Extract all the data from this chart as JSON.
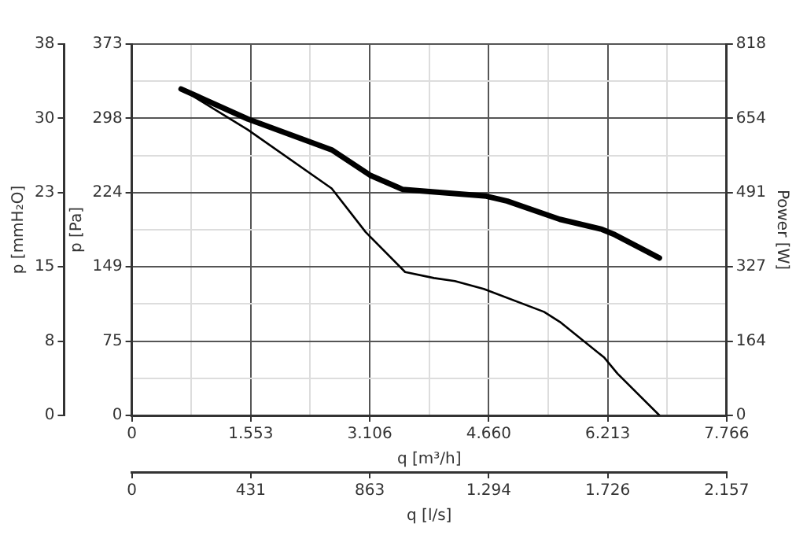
{
  "chart_data": {
    "type": "line",
    "xlabel": "q [m³/h]",
    "ylabel": "p [Pa]",
    "y2label": "Power [W]",
    "y3label": "p [mmH₂O]",
    "x2label": "q [l/s]",
    "xlim": [
      0,
      7766
    ],
    "xticks": [
      0,
      {
        "value": 776.6,
        "label": null
      },
      {
        "value": 1553.2,
        "label": "1.553"
      },
      {
        "value": 2329.8,
        "label": null
      },
      {
        "value": 3106.4,
        "label": "3.106"
      },
      {
        "value": 3883,
        "label": null
      },
      {
        "value": 4659.6,
        "label": "4.660"
      },
      {
        "value": 5436.2,
        "label": null
      },
      {
        "value": 6212.8,
        "label": "6.213"
      },
      {
        "value": 6989.4,
        "label": null
      },
      {
        "value": 7766,
        "label": "7.766"
      }
    ],
    "x2lim": [
      0,
      2157
    ],
    "x2ticks": [
      0,
      {
        "value": 431.4,
        "label": "431"
      },
      {
        "value": 862.8,
        "label": "863"
      },
      {
        "value": 1294.2,
        "label": "1.294"
      },
      {
        "value": 1725.6,
        "label": "1.726"
      },
      {
        "value": 2157,
        "label": "2.157"
      }
    ],
    "ylim": [
      0,
      373
    ],
    "yticks": [
      0,
      {
        "value": 37.3,
        "label": null
      },
      {
        "value": 74.6,
        "label": "75"
      },
      {
        "value": 111.9,
        "label": null
      },
      {
        "value": 149.2,
        "label": "149"
      },
      {
        "value": 186.5,
        "label": null
      },
      {
        "value": 223.8,
        "label": "224"
      },
      {
        "value": 261.1,
        "label": null
      },
      {
        "value": 298.4,
        "label": "298"
      },
      {
        "value": 335.7,
        "label": null
      },
      373
    ],
    "y2lim": [
      0,
      818
    ],
    "y2ticks": [
      0,
      {
        "value": 163.6,
        "label": "164"
      },
      {
        "value": 327.2,
        "label": "327"
      },
      {
        "value": 490.8,
        "label": "491"
      },
      {
        "value": 654.4,
        "label": "654"
      },
      818
    ],
    "y3lim": [
      0,
      38
    ],
    "y3ticks": [
      0,
      {
        "value": 7.6,
        "label": "8"
      },
      {
        "value": 15.2,
        "label": "15"
      },
      {
        "value": 22.8,
        "label": "23"
      },
      {
        "value": 30.4,
        "label": "30"
      },
      38
    ],
    "grid": true,
    "marker": "none",
    "line_style": "solid",
    "series": [
      {
        "color": "#000000",
        "x": [
          643,
          1514,
          2609,
          3054,
          3568,
          3944,
          4218,
          4595,
          5382,
          5588,
          6169,
          6341,
          6889
        ],
        "values": [
          328,
          287,
          228,
          184,
          144,
          138,
          135,
          127,
          104,
          94,
          58,
          42,
          0
        ]
      },
      {
        "color": "#000000",
        "axis": "y2",
        "x": [
          643,
          1514,
          2609,
          3122,
          3533,
          4628,
          4903,
          5588,
          6136,
          6306,
          6888
        ],
        "values": [
          719,
          653,
          585,
          528,
          498,
          483,
          472,
          432,
          410,
          398,
          347
        ]
      }
    ]
  }
}
